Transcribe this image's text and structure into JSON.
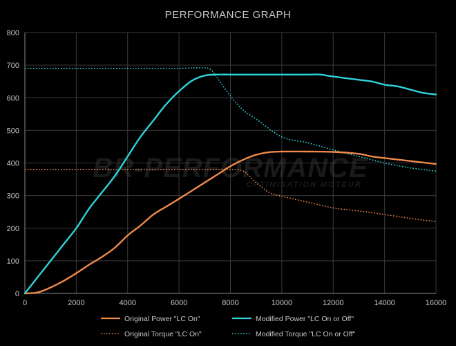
{
  "chart_data": {
    "type": "line",
    "title": "PERFORMANCE GRAPH",
    "xlim": [
      0,
      16000
    ],
    "ylim": [
      0,
      800
    ],
    "x_ticks": [
      0,
      2000,
      4000,
      6000,
      8000,
      10000,
      12000,
      14000,
      16000
    ],
    "y_ticks": [
      0,
      100,
      200,
      300,
      400,
      500,
      600,
      700,
      800
    ],
    "grid": true,
    "legend_position": "bottom",
    "watermark": {
      "main": "BR-PERFORMANCE",
      "sub": "OPTIMISATION MOTEUR"
    },
    "series": [
      {
        "name": "Original Power \"LC On\"",
        "color": "#f0894a",
        "style": "solid",
        "points": [
          [
            0,
            0
          ],
          [
            500,
            3
          ],
          [
            1000,
            18
          ],
          [
            1500,
            38
          ],
          [
            2000,
            62
          ],
          [
            2500,
            88
          ],
          [
            3000,
            112
          ],
          [
            3500,
            140
          ],
          [
            4000,
            178
          ],
          [
            4500,
            208
          ],
          [
            5000,
            242
          ],
          [
            5500,
            266
          ],
          [
            6000,
            290
          ],
          [
            6500,
            315
          ],
          [
            7000,
            340
          ],
          [
            7500,
            365
          ],
          [
            8000,
            390
          ],
          [
            8500,
            410
          ],
          [
            9000,
            425
          ],
          [
            9500,
            433
          ],
          [
            10000,
            435
          ],
          [
            11000,
            435
          ],
          [
            12000,
            434
          ],
          [
            13000,
            428
          ],
          [
            13500,
            420
          ],
          [
            14000,
            415
          ],
          [
            15000,
            406
          ],
          [
            16000,
            397
          ]
        ]
      },
      {
        "name": "Modified Power \"LC On or Off\"",
        "color": "#2ed4dc",
        "style": "solid",
        "points": [
          [
            0,
            0
          ],
          [
            500,
            50
          ],
          [
            1000,
            100
          ],
          [
            1500,
            150
          ],
          [
            2000,
            200
          ],
          [
            2500,
            260
          ],
          [
            3000,
            310
          ],
          [
            3500,
            360
          ],
          [
            4000,
            420
          ],
          [
            4500,
            480
          ],
          [
            5000,
            530
          ],
          [
            5500,
            580
          ],
          [
            6000,
            620
          ],
          [
            6500,
            652
          ],
          [
            7000,
            668
          ],
          [
            7500,
            671
          ],
          [
            8000,
            671
          ],
          [
            9000,
            671
          ],
          [
            10000,
            671
          ],
          [
            11000,
            671
          ],
          [
            11500,
            671
          ],
          [
            12000,
            665
          ],
          [
            13000,
            655
          ],
          [
            13500,
            650
          ],
          [
            14000,
            640
          ],
          [
            14500,
            635
          ],
          [
            15000,
            625
          ],
          [
            15500,
            615
          ],
          [
            16000,
            610
          ]
        ]
      },
      {
        "name": "Original Torque \"LC On\"",
        "color": "#f0894a",
        "style": "dotted",
        "points": [
          [
            0,
            380
          ],
          [
            1000,
            380
          ],
          [
            2000,
            380
          ],
          [
            3000,
            380
          ],
          [
            4000,
            380
          ],
          [
            5000,
            380
          ],
          [
            6000,
            380
          ],
          [
            7000,
            380
          ],
          [
            8000,
            380
          ],
          [
            8500,
            375
          ],
          [
            9000,
            340
          ],
          [
            9500,
            310
          ],
          [
            10000,
            298
          ],
          [
            11000,
            280
          ],
          [
            12000,
            262
          ],
          [
            13000,
            253
          ],
          [
            14000,
            242
          ],
          [
            15000,
            230
          ],
          [
            16000,
            220
          ]
        ]
      },
      {
        "name": "Modified Torque \"LC On or Off\"",
        "color": "#2ed4dc",
        "style": "dotted",
        "points": [
          [
            0,
            690
          ],
          [
            1000,
            690
          ],
          [
            2000,
            690
          ],
          [
            3000,
            690
          ],
          [
            4000,
            690
          ],
          [
            5000,
            690
          ],
          [
            6000,
            690
          ],
          [
            6800,
            692
          ],
          [
            7200,
            688
          ],
          [
            7500,
            660
          ],
          [
            8000,
            605
          ],
          [
            8500,
            562
          ],
          [
            9000,
            535
          ],
          [
            10000,
            480
          ],
          [
            11000,
            462
          ],
          [
            12000,
            440
          ],
          [
            13000,
            420
          ],
          [
            14000,
            400
          ],
          [
            15000,
            385
          ],
          [
            16000,
            375
          ]
        ]
      }
    ]
  }
}
